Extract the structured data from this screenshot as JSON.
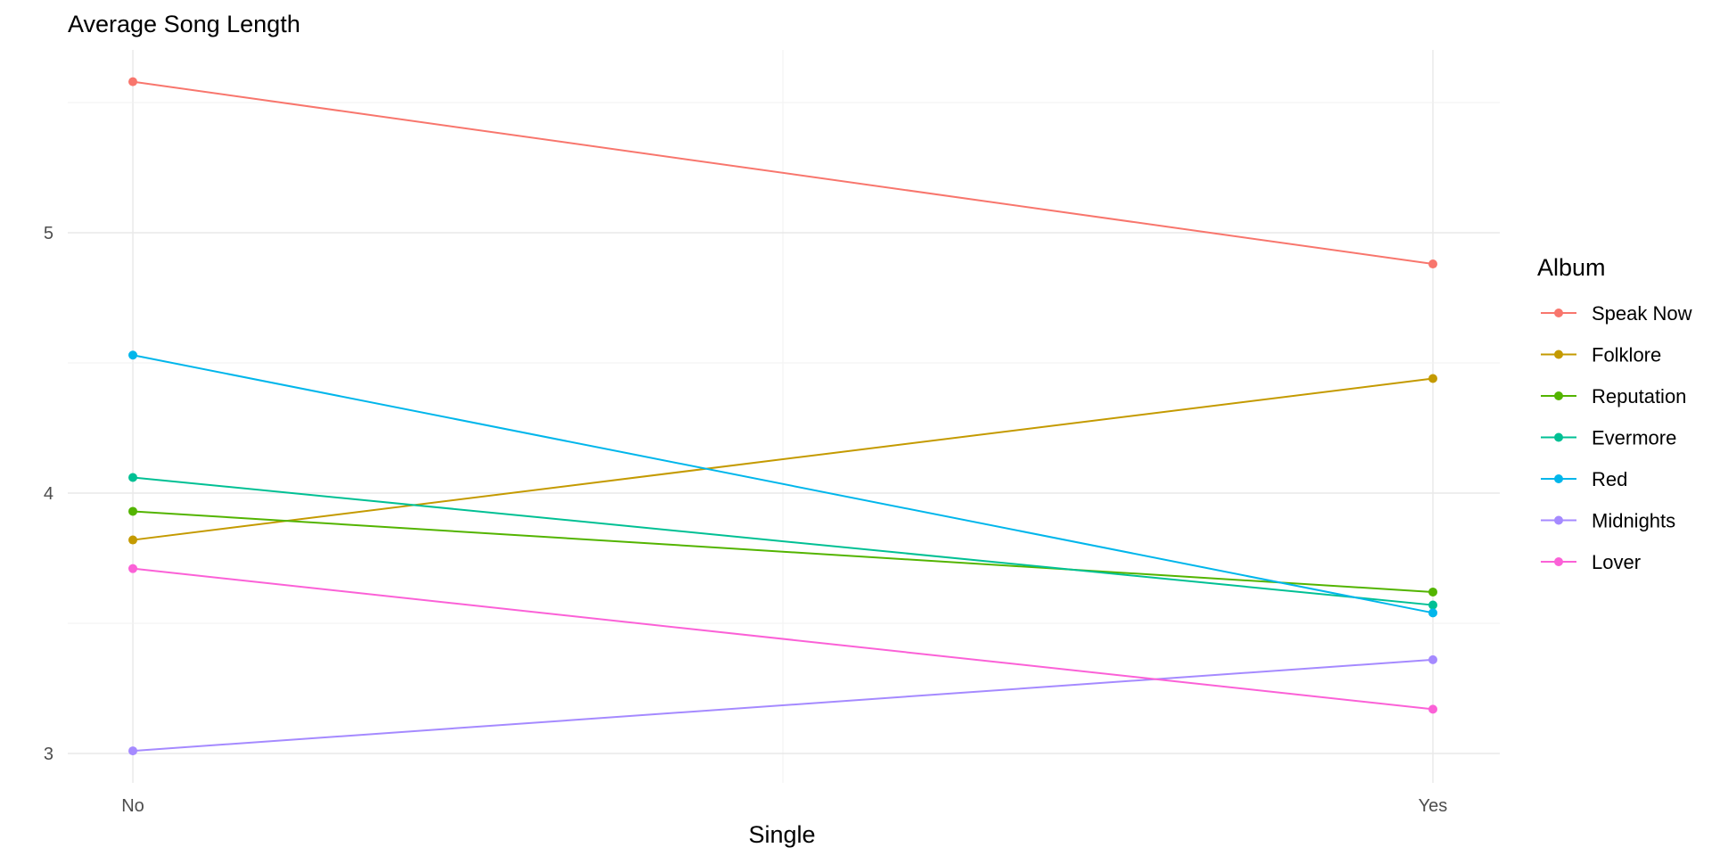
{
  "chart_data": {
    "type": "line",
    "title": "Average Song Length",
    "xlabel": "Single",
    "ylabel": "",
    "categories": [
      "No",
      "Yes"
    ],
    "ylim": [
      2.9,
      5.65
    ],
    "yticks": [
      3,
      4,
      5
    ],
    "grid": true,
    "legend": {
      "title": "Album",
      "position": "right"
    },
    "series": [
      {
        "name": "Speak Now",
        "color": "#F8766D",
        "values": [
          5.58,
          4.88
        ]
      },
      {
        "name": "Folklore",
        "color": "#C49A00",
        "values": [
          3.82,
          4.44
        ]
      },
      {
        "name": "Reputation",
        "color": "#53B400",
        "values": [
          3.93,
          3.62
        ]
      },
      {
        "name": "Evermore",
        "color": "#00C094",
        "values": [
          4.06,
          3.57
        ]
      },
      {
        "name": "Red",
        "color": "#00B6EB",
        "values": [
          4.53,
          3.54
        ]
      },
      {
        "name": "Midnights",
        "color": "#A58AFF",
        "values": [
          3.01,
          3.36
        ]
      },
      {
        "name": "Lover",
        "color": "#FB61D7",
        "values": [
          3.71,
          3.17
        ]
      }
    ]
  }
}
